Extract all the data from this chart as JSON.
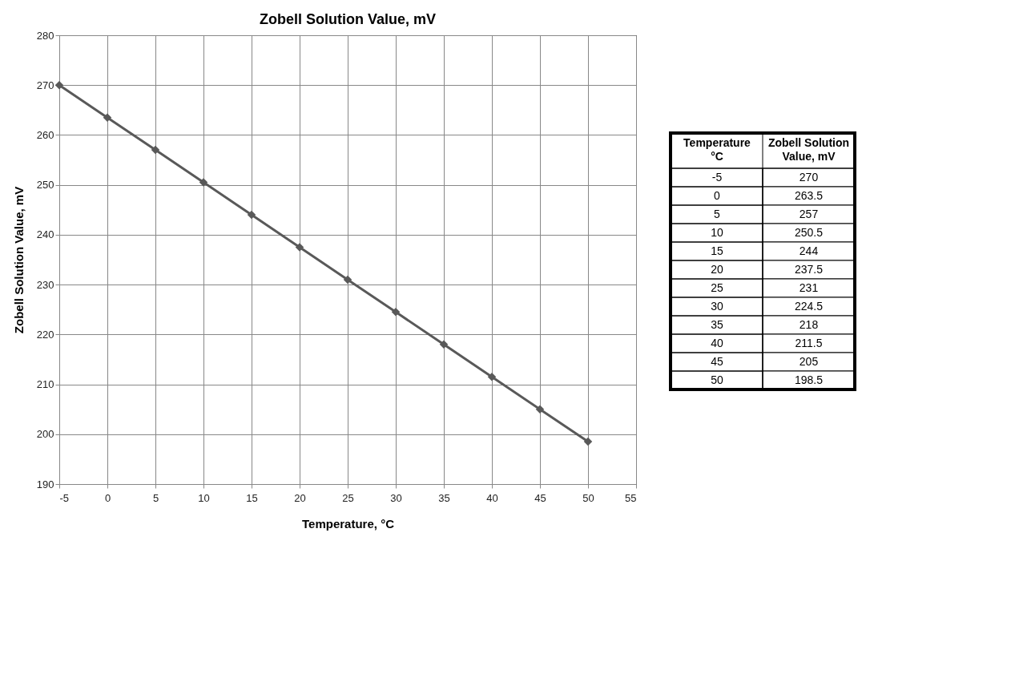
{
  "chart_data": [
    {
      "type": "line",
      "title": "Zobell Solution Value, mV",
      "xlabel": "Temperature, °C",
      "ylabel": "Zobell Solution Value, mV",
      "x": [
        -5,
        0,
        5,
        10,
        15,
        20,
        25,
        30,
        35,
        40,
        45,
        50
      ],
      "series": [
        {
          "color": "#595959",
          "values": [
            270,
            263.5,
            257,
            250.5,
            244,
            237.5,
            231,
            224.5,
            218,
            211.5,
            205,
            198.5
          ]
        }
      ],
      "xlim": [
        -5,
        55
      ],
      "xticks": [
        -5,
        0,
        5,
        10,
        15,
        20,
        25,
        30,
        35,
        40,
        45,
        50,
        55
      ],
      "ylim": [
        190,
        280
      ],
      "yticks": [
        190,
        200,
        210,
        220,
        230,
        240,
        250,
        260,
        270,
        280
      ],
      "grid": true,
      "marker": "diamond",
      "line_style": "solid"
    },
    {
      "type": "heatmap",
      "categories": [
        "Zobell Solution Value, mV"
      ],
      "ylabel": "Temperature °C",
      "data_labels": true,
      "y_categories": [
        "-5",
        "0",
        "5",
        "10",
        "15",
        "20",
        "25",
        "30",
        "35",
        "40",
        "45",
        "50"
      ],
      "cells": [
        [
          270
        ],
        [
          263.5
        ],
        [
          257
        ],
        [
          250.5
        ],
        [
          244
        ],
        [
          237.5
        ],
        [
          231
        ],
        [
          224.5
        ],
        [
          218
        ],
        [
          211.5
        ],
        [
          205
        ],
        [
          198.5
        ]
      ]
    }
  ]
}
